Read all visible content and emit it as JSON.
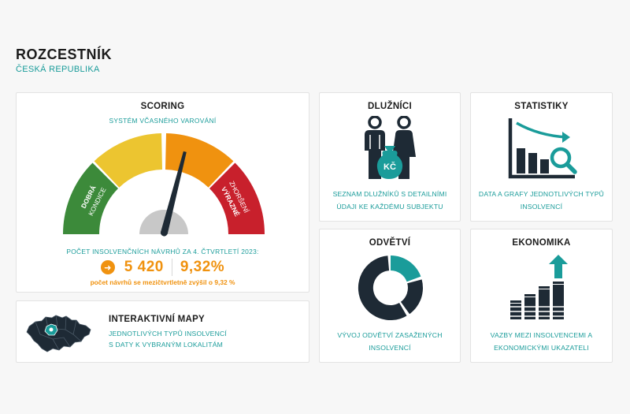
{
  "header": {
    "title": "ROZCESTNÍK",
    "subtitle": "ČESKÁ REPUBLIKA"
  },
  "scoring": {
    "title": "SCORING",
    "subtitle": "SYSTÉM VČASNÉHO VAROVÁNÍ",
    "gauge": {
      "left_line1": "DOBRÁ",
      "left_line2": "KONDICE",
      "right_line1": "VÝRAZNÉ",
      "right_line2": "ZHORŠENÍ",
      "needle_fraction": 0.58,
      "colors": [
        "#3c8a3a",
        "#ecc530",
        "#f0920f",
        "#c8202c",
        "#c8c8c8",
        "#1e2a35"
      ]
    },
    "count_label": "POČET INSOLVENČNÍCH NÁVRHŮ ZA 4. ČTVRTLETÍ 2023:",
    "arrow_icon": "arrow-right-icon",
    "count_value": "5 420",
    "change_value": "9,32%",
    "note": "počet návrhů se mezičtvrtletně zvýšil o 9,32 %"
  },
  "maps": {
    "title": "INTERAKTIVNÍ MAPY",
    "desc_line1": "JEDNOTLIVÝCH TYPŮ INSOLVENCÍ",
    "desc_line2": "S DATY K VYBRANÝM LOKALITÁM",
    "icon": "czech-map-icon"
  },
  "dluznici": {
    "title": "DLUŽNÍCI",
    "icon": "debtors-icon",
    "bag_label": "KČ",
    "desc_line1": "SEZNAM DLUŽNÍKŮ S DETAILNÍMI",
    "desc_line2": "ÚDAJI KE KAŽDÉMU SUBJEKTU"
  },
  "statistiky": {
    "title": "STATISTIKY",
    "icon": "bar-chart-magnifier-icon",
    "desc_line1": "DATA A GRAFY JEDNOTLIVÝCH TYPŮ",
    "desc_line2": "INSOLVENCÍ"
  },
  "odvetvi": {
    "title": "ODVĚTVÍ",
    "icon": "donut-chart-icon",
    "desc_line1": "VÝVOJ ODVĚTVÍ ZASAŽENÝCH",
    "desc_line2": "INSOLVENCÍ"
  },
  "ekonomika": {
    "title": "EKONOMIKA",
    "icon": "growth-chart-icon",
    "desc_line1": "VAZBY MEZI INSOLVENCEMI A",
    "desc_line2": "EKONOMICKÝMI UKAZATELI"
  },
  "colors": {
    "teal": "#1a9c9a",
    "navy": "#1e2a35",
    "orange": "#f0920f"
  }
}
